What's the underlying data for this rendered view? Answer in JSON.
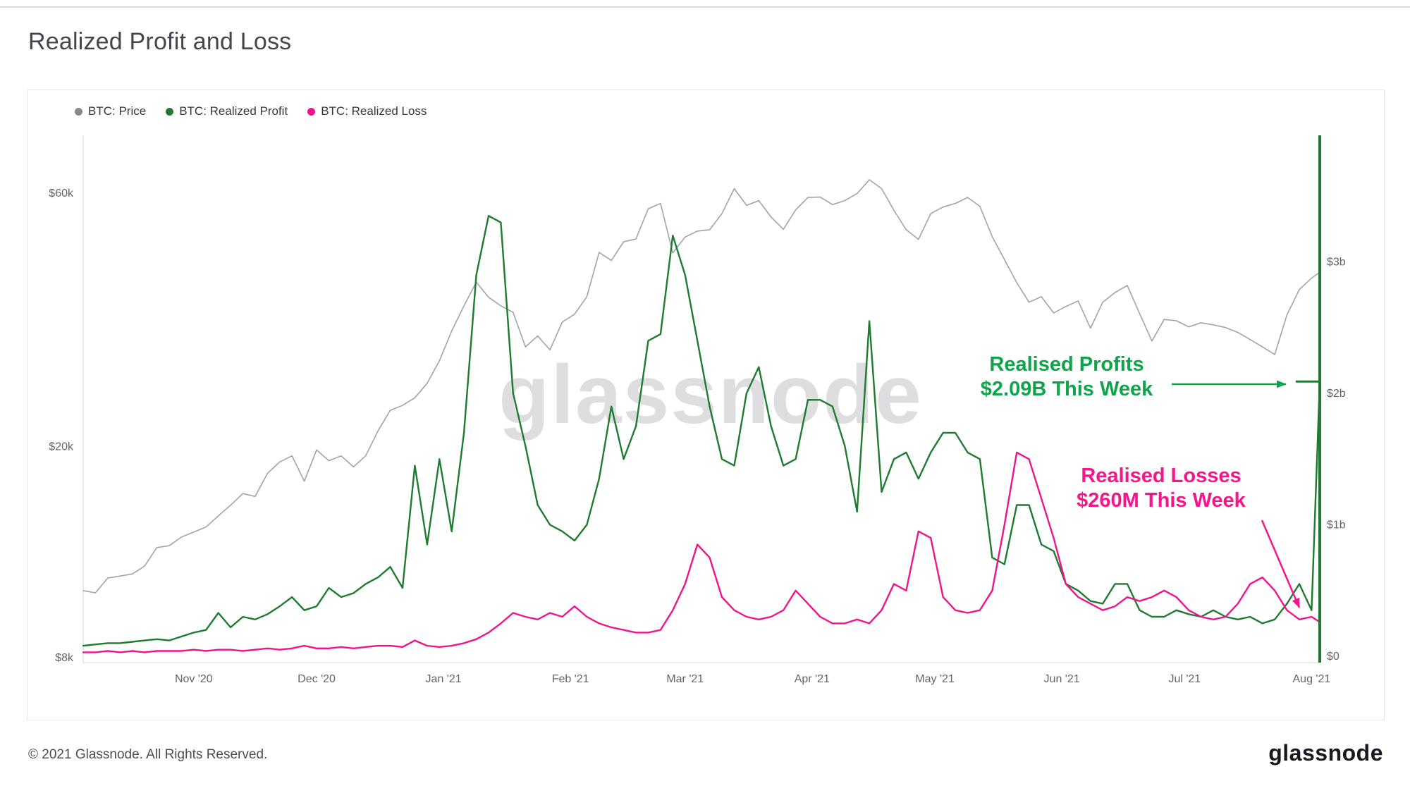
{
  "page": {
    "title": "Realized Profit and Loss",
    "watermark": "glassnode",
    "footer_copyright": "© 2021 Glassnode. All Rights Reserved.",
    "footer_brand": "glassnode"
  },
  "legend": [
    {
      "label": "BTC: Price",
      "color": "#88888d"
    },
    {
      "label": "BTC: Realized Profit",
      "color": "#1e7b2f"
    },
    {
      "label": "BTC: Realized Loss",
      "color": "#f0148c"
    }
  ],
  "annotations": {
    "profit": {
      "line1": "Realised Profits",
      "line2": "$2.09B This Week",
      "color": "#0ea44a"
    },
    "loss": {
      "line1": "Realised Losses",
      "line2": "$260M This Week",
      "color": "#f5158c"
    }
  },
  "chart_data": {
    "type": "line",
    "title": "Realized Profit and Loss",
    "x_unit": "days since 2020-10-05 (sampled ~every 3 days)",
    "x_ticks": [
      {
        "day": 27,
        "label": "Nov '20"
      },
      {
        "day": 57,
        "label": "Dec '20"
      },
      {
        "day": 88,
        "label": "Jan '21"
      },
      {
        "day": 119,
        "label": "Feb '21"
      },
      {
        "day": 147,
        "label": "Mar '21"
      },
      {
        "day": 178,
        "label": "Apr '21"
      },
      {
        "day": 208,
        "label": "May '21"
      },
      {
        "day": 239,
        "label": "Jun '21"
      },
      {
        "day": 269,
        "label": "Jul '21"
      },
      {
        "day": 300,
        "label": "Aug '21"
      }
    ],
    "left_axis": {
      "scale": "log",
      "unit": "USD",
      "ticks": [
        {
          "value": 60000,
          "label": "$60k"
        },
        {
          "value": 20000,
          "label": "$20k"
        },
        {
          "value": 8000,
          "label": "$8k"
        }
      ]
    },
    "right_axis": {
      "scale": "linear",
      "unit": "USD billions",
      "range": [
        0,
        4
      ],
      "ticks": [
        {
          "value": 3,
          "label": "$3b"
        },
        {
          "value": 2,
          "label": "$2b"
        },
        {
          "value": 1,
          "label": "$1b"
        },
        {
          "value": 0,
          "label": "$0"
        }
      ]
    },
    "grid": false,
    "legend_position": "top-left",
    "days": [
      0,
      3,
      6,
      9,
      12,
      15,
      18,
      21,
      24,
      27,
      30,
      33,
      36,
      39,
      42,
      45,
      48,
      51,
      54,
      57,
      60,
      63,
      66,
      69,
      72,
      75,
      78,
      81,
      84,
      87,
      90,
      93,
      96,
      99,
      102,
      105,
      108,
      111,
      114,
      117,
      120,
      123,
      126,
      129,
      132,
      135,
      138,
      141,
      144,
      147,
      150,
      153,
      156,
      159,
      162,
      165,
      168,
      171,
      174,
      177,
      180,
      183,
      186,
      189,
      192,
      195,
      198,
      201,
      204,
      207,
      210,
      213,
      216,
      219,
      222,
      225,
      228,
      231,
      234,
      237,
      240,
      243,
      246,
      249,
      252,
      255,
      258,
      261,
      264,
      267,
      270,
      273,
      276,
      279,
      282,
      285,
      288,
      291,
      294,
      297,
      300,
      302
    ],
    "series": [
      {
        "name": "BTC: Price",
        "axis": "left",
        "unit": "USD thousands",
        "color": "#a3a3a8",
        "values": [
          10.7,
          10.6,
          11.3,
          11.4,
          11.5,
          11.9,
          12.9,
          13.0,
          13.5,
          13.8,
          14.1,
          14.8,
          15.5,
          16.3,
          16.1,
          17.8,
          18.7,
          19.2,
          17.2,
          19.7,
          18.8,
          19.2,
          18.3,
          19.2,
          21.4,
          23.4,
          23.9,
          24.7,
          26.3,
          29.0,
          33.0,
          36.8,
          40.8,
          38.2,
          36.8,
          35.8,
          30.8,
          32.3,
          30.4,
          34.3,
          35.5,
          38.3,
          46.4,
          44.8,
          48.6,
          49.2,
          56.1,
          57.4,
          46.3,
          49.6,
          50.9,
          51.2,
          54.9,
          61.2,
          56.9,
          58.1,
          54.1,
          51.3,
          55.8,
          58.9,
          59.0,
          57.1,
          58.1,
          59.9,
          63.6,
          61.2,
          55.7,
          51.2,
          49.1,
          54.9,
          56.5,
          57.4,
          58.9,
          56.7,
          49.7,
          45.0,
          40.7,
          37.4,
          38.3,
          35.7,
          36.7,
          37.6,
          33.4,
          37.4,
          39.0,
          40.2,
          35.6,
          31.6,
          34.7,
          34.5,
          33.6,
          34.2,
          33.9,
          33.5,
          32.8,
          31.8,
          30.8,
          29.8,
          35.4,
          39.5,
          41.5,
          42.6
        ]
      },
      {
        "name": "BTC: Realized Profit",
        "axis": "right",
        "unit": "USD billions",
        "color": "#1e7b2f",
        "values": [
          0.08,
          0.09,
          0.1,
          0.1,
          0.11,
          0.12,
          0.13,
          0.12,
          0.15,
          0.18,
          0.2,
          0.33,
          0.22,
          0.3,
          0.28,
          0.32,
          0.38,
          0.45,
          0.35,
          0.38,
          0.52,
          0.45,
          0.48,
          0.55,
          0.6,
          0.68,
          0.52,
          1.45,
          0.85,
          1.5,
          0.95,
          1.7,
          2.9,
          3.35,
          3.3,
          2.0,
          1.6,
          1.15,
          1.0,
          0.95,
          0.88,
          1.0,
          1.35,
          1.9,
          1.5,
          1.75,
          2.4,
          2.45,
          3.2,
          2.9,
          2.4,
          1.9,
          1.5,
          1.45,
          2.0,
          2.2,
          1.75,
          1.45,
          1.5,
          1.95,
          1.95,
          1.9,
          1.6,
          1.1,
          2.55,
          1.25,
          1.5,
          1.55,
          1.35,
          1.55,
          1.7,
          1.7,
          1.55,
          1.5,
          0.75,
          0.7,
          1.15,
          1.15,
          0.85,
          0.8,
          0.55,
          0.5,
          0.42,
          0.4,
          0.55,
          0.55,
          0.35,
          0.3,
          0.3,
          0.35,
          0.32,
          0.3,
          0.35,
          0.3,
          0.28,
          0.3,
          0.25,
          0.28,
          0.4,
          0.55,
          0.35,
          2.09
        ]
      },
      {
        "name": "BTC: Realized Loss",
        "axis": "right",
        "unit": "USD billions",
        "color": "#f0148c",
        "values": [
          0.03,
          0.03,
          0.04,
          0.03,
          0.04,
          0.03,
          0.04,
          0.04,
          0.04,
          0.05,
          0.04,
          0.05,
          0.05,
          0.04,
          0.05,
          0.06,
          0.05,
          0.06,
          0.08,
          0.06,
          0.06,
          0.07,
          0.06,
          0.07,
          0.08,
          0.08,
          0.07,
          0.12,
          0.08,
          0.07,
          0.08,
          0.1,
          0.13,
          0.18,
          0.25,
          0.33,
          0.3,
          0.28,
          0.33,
          0.3,
          0.38,
          0.3,
          0.25,
          0.22,
          0.2,
          0.18,
          0.18,
          0.2,
          0.35,
          0.55,
          0.85,
          0.75,
          0.45,
          0.35,
          0.3,
          0.28,
          0.3,
          0.35,
          0.5,
          0.4,
          0.3,
          0.25,
          0.25,
          0.28,
          0.25,
          0.35,
          0.55,
          0.5,
          0.95,
          0.9,
          0.45,
          0.35,
          0.33,
          0.35,
          0.5,
          1.0,
          1.55,
          1.5,
          1.2,
          0.9,
          0.55,
          0.45,
          0.4,
          0.35,
          0.38,
          0.45,
          0.42,
          0.45,
          0.5,
          0.45,
          0.35,
          0.3,
          0.28,
          0.3,
          0.4,
          0.55,
          0.6,
          0.5,
          0.35,
          0.28,
          0.3,
          0.26
        ]
      }
    ],
    "callouts": {
      "realized_profit_this_week": "$2.09B",
      "realized_loss_this_week": "$260M"
    }
  }
}
